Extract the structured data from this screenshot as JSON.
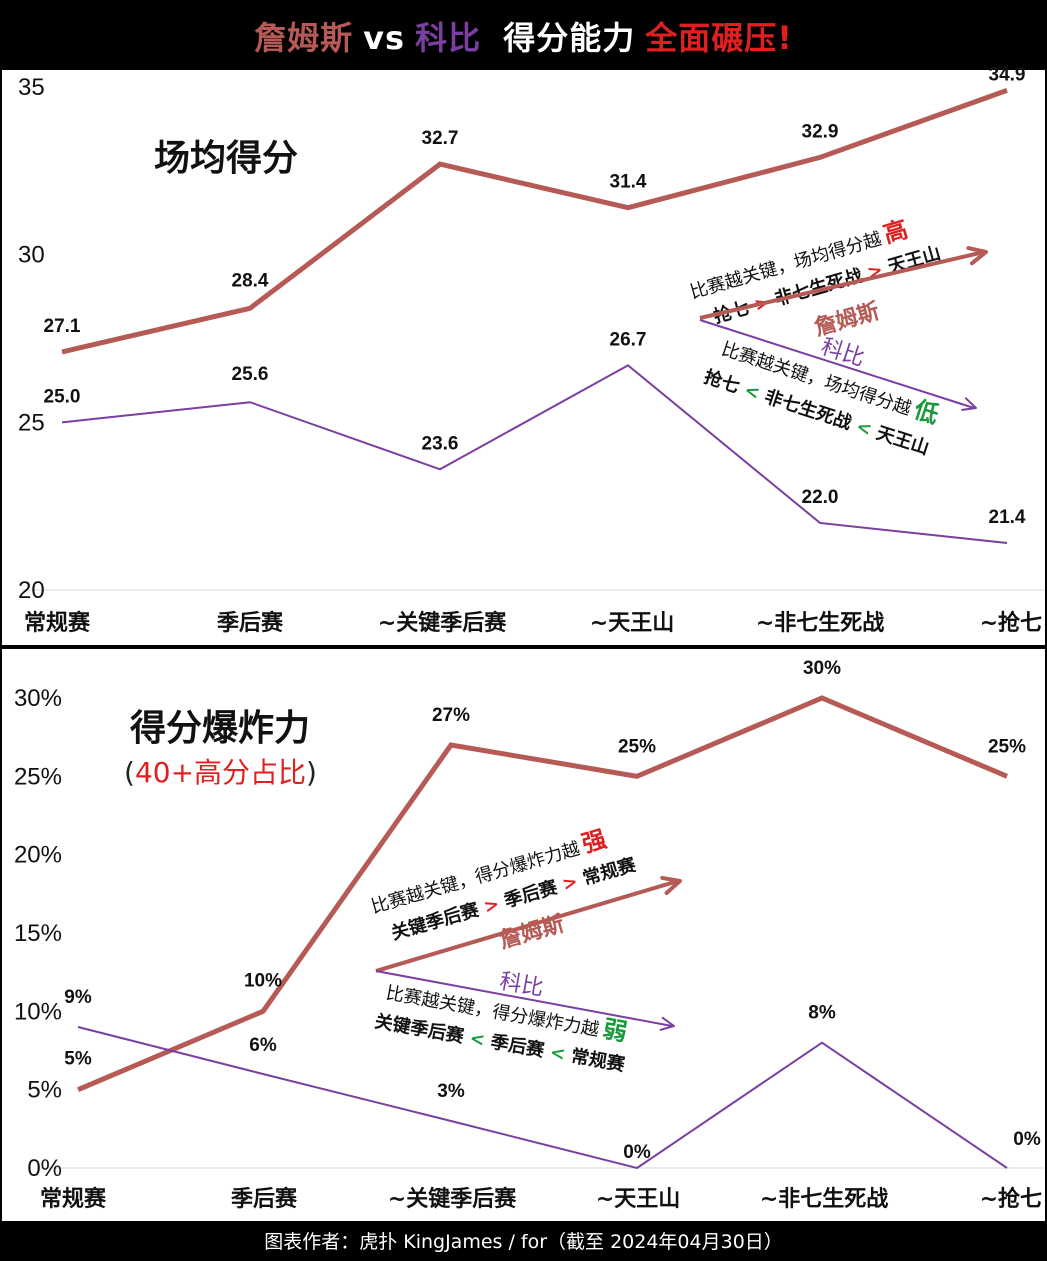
{
  "title": {
    "james": "詹姆斯",
    "vs": "vs",
    "kobe": "科比",
    "mid": "得分能力",
    "tail": "全面碾压!"
  },
  "colors": {
    "james": "#b55a55",
    "kobe": "#7a3fa0",
    "red": "#e02020",
    "green": "#1a9a3a"
  },
  "footer": "图表作者：虎扑 KingJames / for（截至 2024年04月30日）",
  "chart_data": [
    {
      "type": "line",
      "title": "场均得分",
      "categories": [
        "常规赛",
        "季后赛",
        "~关键季后赛",
        "~天王山",
        "~非七生死战",
        "~抢七"
      ],
      "ylim": [
        20,
        35
      ],
      "yticks": [
        "20",
        "25",
        "30",
        "35"
      ],
      "series": [
        {
          "name": "詹姆斯",
          "values": [
            27.1,
            28.4,
            32.7,
            31.4,
            32.9,
            34.9
          ],
          "labels": [
            "27.1",
            "28.4",
            "32.7",
            "31.4",
            "32.9",
            "34.9"
          ]
        },
        {
          "name": "科比",
          "values": [
            25.0,
            25.6,
            23.6,
            26.7,
            22.0,
            21.4
          ],
          "labels": [
            "25.0",
            "25.6",
            "23.6",
            "26.7",
            "22.0",
            "21.4"
          ]
        }
      ],
      "annotations": {
        "james_line1": "比赛越关键，场均得分越",
        "james_word": "高",
        "james_order": [
          "抢七",
          ">",
          "非七生死战",
          ">",
          "天王山"
        ],
        "james_name": "詹姆斯",
        "kobe_name": "科比",
        "kobe_line1": "比赛越关键，场均得分越",
        "kobe_word": "低",
        "kobe_order": [
          "抢七",
          "<",
          "非七生死战",
          "<",
          "天王山"
        ]
      }
    },
    {
      "type": "line",
      "title": "得分爆炸力",
      "subtitle_open": "(",
      "subtitle": "40+高分占比",
      "subtitle_close": ")",
      "categories": [
        "常规赛",
        "季后赛",
        "~关键季后赛",
        "~天王山",
        "~非七生死战",
        "~抢七"
      ],
      "ylim": [
        0,
        30
      ],
      "yticks": [
        "0%",
        "5%",
        "10%",
        "15%",
        "20%",
        "25%",
        "30%"
      ],
      "series": [
        {
          "name": "詹姆斯",
          "values": [
            5,
            10,
            27,
            25,
            30,
            25
          ],
          "labels": [
            "5%",
            "10%",
            "27%",
            "25%",
            "30%",
            "25%"
          ]
        },
        {
          "name": "科比",
          "values": [
            9,
            6,
            3,
            0,
            8,
            0
          ],
          "labels": [
            "9%",
            "6%",
            "3%",
            "0%",
            "8%",
            "0%"
          ]
        }
      ],
      "annotations": {
        "james_line1": "比赛越关键，得分爆炸力越",
        "james_word": "强",
        "james_order": [
          "关键季后赛",
          ">",
          "季后赛",
          ">",
          "常规赛"
        ],
        "james_name": "詹姆斯",
        "kobe_name": "科比",
        "kobe_line1": "比赛越关键，得分爆炸力越",
        "kobe_word": "弱",
        "kobe_order": [
          "关键季后赛",
          "<",
          "季后赛",
          "<",
          "常规赛"
        ]
      }
    }
  ]
}
